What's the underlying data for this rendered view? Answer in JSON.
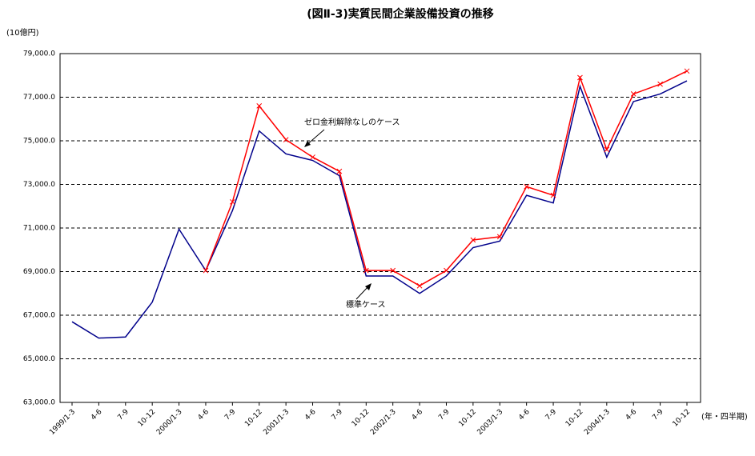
{
  "chart_data": {
    "type": "line",
    "title": "(図Ⅱ-3)実質民間企業設備投資の推移",
    "y_label": "(10億円)",
    "x_label": "(年・四半期)",
    "categories": [
      "1999/1-3",
      "4-6",
      "7-9",
      "10-12",
      "2000/1-3",
      "4-6",
      "7-9",
      "10-12",
      "2001/1-3",
      "4-6",
      "7-9",
      "10-12",
      "2002/1-3",
      "4-6",
      "7-9",
      "10-12",
      "2003/1-3",
      "4-6",
      "7-9",
      "10-12",
      "2004/1-3",
      "4-6",
      "7-9",
      "10-12"
    ],
    "series": [
      {
        "name": "標準ケース",
        "color": "#00008b",
        "values": [
          66700,
          65950,
          66000,
          67600,
          70950,
          69050,
          71800,
          75450,
          74400,
          74100,
          73400,
          68800,
          68800,
          68000,
          68800,
          70100,
          70400,
          72500,
          72150,
          77500,
          74250,
          76800,
          77150,
          77750
        ]
      },
      {
        "name": "ゼロ金利解除なしのケース",
        "color": "#ff0000",
        "values": [
          null,
          null,
          null,
          null,
          null,
          69050,
          72200,
          76600,
          75050,
          74250,
          73600,
          69050,
          69050,
          68350,
          69050,
          70450,
          70600,
          72900,
          72500,
          77900,
          74600,
          77150,
          77600,
          78200
        ]
      }
    ],
    "ylim": [
      63000,
      79000
    ],
    "yticks": [
      {
        "value": 63000,
        "label": "63,000.0"
      },
      {
        "value": 65000,
        "label": "65,000.0"
      },
      {
        "value": 67000,
        "label": "67,000.0"
      },
      {
        "value": 69000,
        "label": "69,000.0"
      },
      {
        "value": 71000,
        "label": "71,000.0"
      },
      {
        "value": 73000,
        "label": "73,000.0"
      },
      {
        "value": 75000,
        "label": "75,000.0"
      },
      {
        "value": 77000,
        "label": "77,000.0"
      },
      {
        "value": 79000,
        "label": "79,000.0"
      }
    ],
    "grid": true
  }
}
